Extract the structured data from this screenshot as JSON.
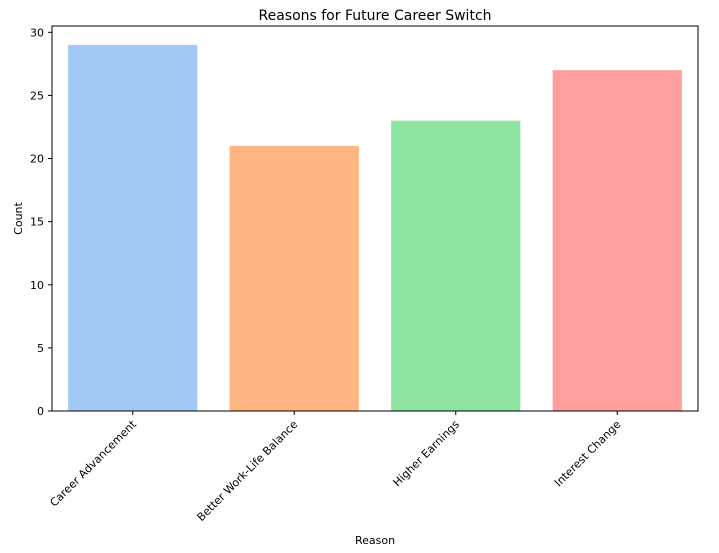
{
  "chart_data": {
    "type": "bar",
    "title": "Reasons for Future Career Switch",
    "xlabel": "Reason",
    "ylabel": "Count",
    "categories": [
      "Career Advancement",
      "Better Work-Life Balance",
      "Higher Earnings",
      "Interest Change"
    ],
    "values": [
      29,
      21,
      23,
      27
    ],
    "colors": [
      "#a1c9f4",
      "#ffb482",
      "#8de5a1",
      "#ff9f9b"
    ],
    "ylim": [
      0,
      30.5
    ],
    "yticks": [
      0,
      5,
      10,
      15,
      20,
      25,
      30
    ],
    "grid": false,
    "xtick_rotation": 45
  }
}
